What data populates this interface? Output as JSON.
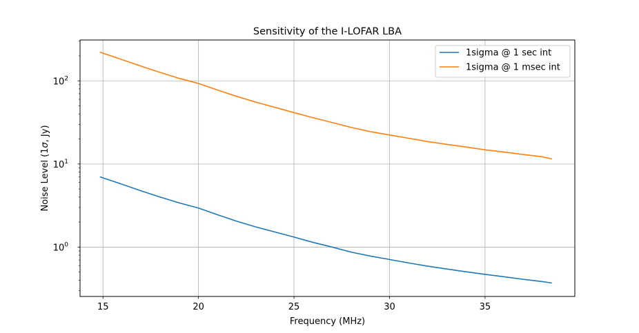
{
  "chart_data": {
    "type": "line",
    "title": "Sensitivity of the I-LOFAR LBA",
    "xlabel": "Frequency (MHz)",
    "ylabel_parts": [
      "Noise Level (1",
      "σ",
      ", Jy)"
    ],
    "xlim": [
      13.8,
      39.7
    ],
    "ylim": [
      0.255,
      310
    ],
    "yscale": "log",
    "grid": true,
    "legend_position": "top-right",
    "x_ticks": [
      15,
      20,
      25,
      30,
      35
    ],
    "x_tick_labels": [
      "15",
      "20",
      "25",
      "30",
      "35"
    ],
    "y_ticks": [
      1,
      10,
      100
    ],
    "y_tick_labels": [
      {
        "base": "10",
        "exp": "0"
      },
      {
        "base": "10",
        "exp": "1"
      },
      {
        "base": "10",
        "exp": "2"
      }
    ],
    "x": [
      14.84,
      15,
      16,
      17,
      18,
      19,
      20,
      21,
      22,
      23,
      24,
      25,
      26,
      27,
      28,
      29,
      30,
      31,
      32,
      33,
      34,
      35,
      36,
      37,
      38,
      38.5
    ],
    "series": [
      {
        "name": "1sigma @ 1 sec int",
        "color": "#1f77b4",
        "values": [
          7.0,
          6.8,
          5.7,
          4.75,
          4.0,
          3.4,
          2.95,
          2.45,
          2.05,
          1.75,
          1.52,
          1.32,
          1.14,
          1.0,
          0.87,
          0.78,
          0.71,
          0.645,
          0.59,
          0.545,
          0.505,
          0.47,
          0.44,
          0.41,
          0.385,
          0.37
        ]
      },
      {
        "name": "1sigma @ 1 msec int",
        "color": "#ff7f0e",
        "values": [
          222,
          215,
          180,
          150,
          126,
          107,
          93,
          77.5,
          65,
          55.5,
          48,
          41.5,
          36,
          31.5,
          27.5,
          24.5,
          22.3,
          20.4,
          18.6,
          17.2,
          16.0,
          14.8,
          13.9,
          13.0,
          12.2,
          11.5
        ]
      }
    ]
  }
}
